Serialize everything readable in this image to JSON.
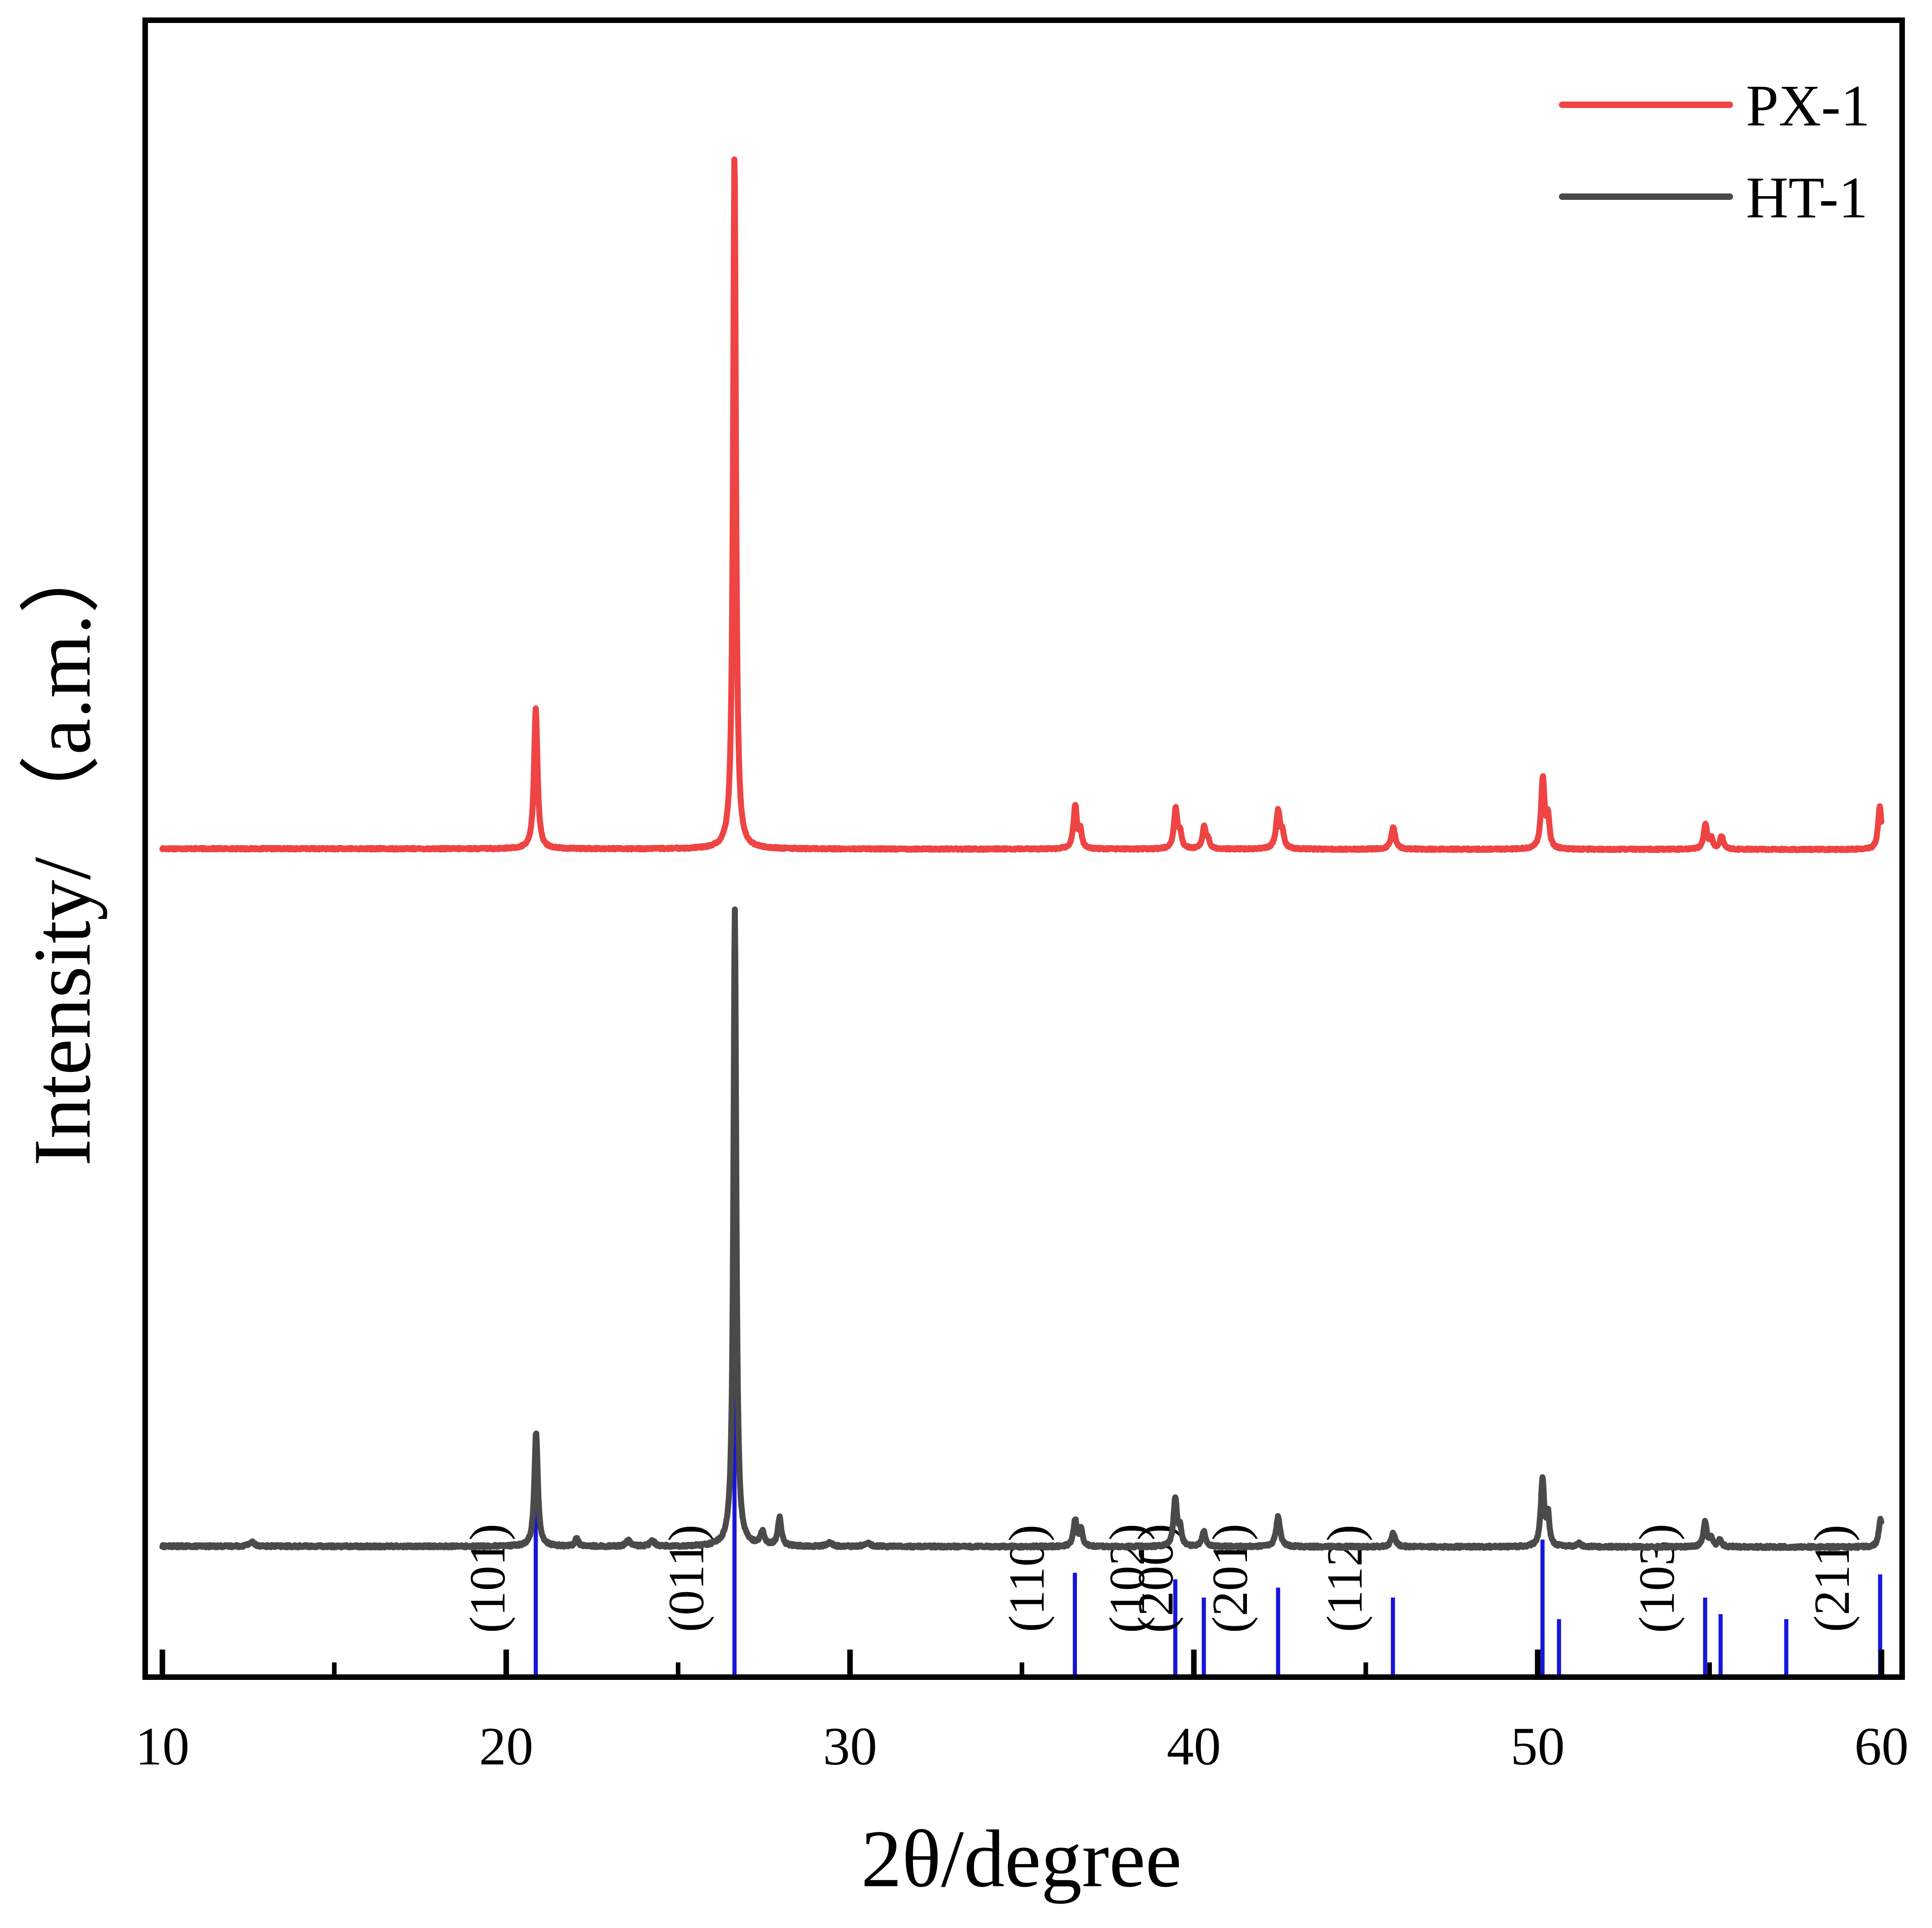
{
  "chart_data": {
    "type": "line",
    "title": "",
    "xlabel": "2θ/degree",
    "ylabel": "Intensity/ （a.m.）",
    "xlim": [
      9.5,
      60.6
    ],
    "ylim": [
      0,
      100
    ],
    "xticks": [
      10,
      20,
      30,
      40,
      50,
      60
    ],
    "xtick_labels": [
      "10",
      "20",
      "30",
      "40",
      "50",
      "60"
    ],
    "minor_xticks": [
      15,
      25,
      35,
      45,
      55
    ],
    "grid": false,
    "legend_position": "top-right",
    "colors": {
      "px1": "#ee4444",
      "ht1": "#4a4a4a",
      "reference": "#1616dd",
      "axis": "#000000"
    },
    "series": [
      {
        "name": "PX-1",
        "color": "#ee4444",
        "baseline": 50,
        "noise": 0.05,
        "peaks": [
          {
            "x": 20.86,
            "h": 8.5,
            "w": 0.06
          },
          {
            "x": 26.64,
            "h": 42.0,
            "w": 0.05
          },
          {
            "x": 36.55,
            "h": 2.6,
            "w": 0.06
          },
          {
            "x": 36.7,
            "h": 1.0,
            "w": 0.05
          },
          {
            "x": 39.47,
            "h": 2.4,
            "w": 0.06
          },
          {
            "x": 39.6,
            "h": 0.9,
            "w": 0.05
          },
          {
            "x": 40.3,
            "h": 1.3,
            "w": 0.06
          },
          {
            "x": 40.42,
            "h": 0.5,
            "w": 0.05
          },
          {
            "x": 42.45,
            "h": 2.3,
            "w": 0.07
          },
          {
            "x": 42.58,
            "h": 0.8,
            "w": 0.05
          },
          {
            "x": 45.8,
            "h": 1.3,
            "w": 0.07
          },
          {
            "x": 50.15,
            "h": 4.3,
            "w": 0.06
          },
          {
            "x": 50.3,
            "h": 1.8,
            "w": 0.05
          },
          {
            "x": 54.88,
            "h": 1.5,
            "w": 0.06
          },
          {
            "x": 55.05,
            "h": 0.6,
            "w": 0.05
          },
          {
            "x": 55.35,
            "h": 0.8,
            "w": 0.06
          },
          {
            "x": 59.95,
            "h": 2.6,
            "w": 0.06
          }
        ]
      },
      {
        "name": "HT-1",
        "color": "#4a4a4a",
        "baseline": 7.9,
        "noise": 0.07,
        "peaks": [
          {
            "x": 12.6,
            "h": 0.25,
            "w": 0.1
          },
          {
            "x": 20.87,
            "h": 6.9,
            "w": 0.06
          },
          {
            "x": 22.05,
            "h": 0.45,
            "w": 0.06
          },
          {
            "x": 23.55,
            "h": 0.35,
            "w": 0.08
          },
          {
            "x": 24.25,
            "h": 0.35,
            "w": 0.08
          },
          {
            "x": 26.65,
            "h": 38.4,
            "w": 0.05
          },
          {
            "x": 27.45,
            "h": 0.8,
            "w": 0.07
          },
          {
            "x": 27.95,
            "h": 1.7,
            "w": 0.06
          },
          {
            "x": 29.4,
            "h": 0.25,
            "w": 0.08
          },
          {
            "x": 30.5,
            "h": 0.2,
            "w": 0.1
          },
          {
            "x": 36.55,
            "h": 1.6,
            "w": 0.06
          },
          {
            "x": 36.72,
            "h": 1.0,
            "w": 0.05
          },
          {
            "x": 39.46,
            "h": 2.9,
            "w": 0.06
          },
          {
            "x": 39.6,
            "h": 1.0,
            "w": 0.05
          },
          {
            "x": 40.29,
            "h": 0.9,
            "w": 0.06
          },
          {
            "x": 42.45,
            "h": 1.8,
            "w": 0.07
          },
          {
            "x": 45.8,
            "h": 0.8,
            "w": 0.07
          },
          {
            "x": 50.14,
            "h": 4.0,
            "w": 0.06
          },
          {
            "x": 50.3,
            "h": 1.8,
            "w": 0.05
          },
          {
            "x": 51.2,
            "h": 0.2,
            "w": 0.08
          },
          {
            "x": 54.87,
            "h": 1.5,
            "w": 0.06
          },
          {
            "x": 55.05,
            "h": 0.5,
            "w": 0.05
          },
          {
            "x": 55.3,
            "h": 0.4,
            "w": 0.06
          },
          {
            "x": 59.97,
            "h": 1.7,
            "w": 0.06
          }
        ]
      }
    ],
    "reference_lines": [
      {
        "x": 20.86,
        "h": 10.6,
        "label": "(101)"
      },
      {
        "x": 26.64,
        "h": 46.2,
        "label": "(011)"
      },
      {
        "x": 36.54,
        "h": 6.3,
        "label": "(110)"
      },
      {
        "x": 39.46,
        "h": 5.9,
        "label": "(102)"
      },
      {
        "x": 40.29,
        "h": 4.8,
        "label": "(200)"
      },
      {
        "x": 42.45,
        "h": 5.4,
        "label": "(201)"
      },
      {
        "x": 45.79,
        "h": 4.8,
        "label": "(112)"
      },
      {
        "x": 50.14,
        "h": 8.3,
        "label": ""
      },
      {
        "x": 50.62,
        "h": 3.5,
        "label": ""
      },
      {
        "x": 54.87,
        "h": 4.8,
        "label": "(103)"
      },
      {
        "x": 55.32,
        "h": 3.8,
        "label": ""
      },
      {
        "x": 57.23,
        "h": 3.5,
        "label": ""
      },
      {
        "x": 59.96,
        "h": 6.2,
        "label": "(211)"
      }
    ]
  }
}
